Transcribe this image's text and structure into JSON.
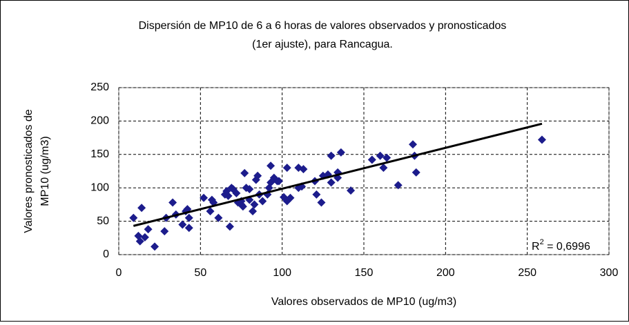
{
  "chart_data": {
    "type": "scatter",
    "title_lines": [
      "Dispersión de MP10 de 6 a 6 horas de valores observados  y pronosticados",
      "(1er ajuste), para Rancagua."
    ],
    "x_label": "Valores observados de MP10 (ug/m3)",
    "y_label_lines": [
      "Valores pronosticados de",
      "MP10 (ug/m3)"
    ],
    "color": "#1c1c8c",
    "xlim": [
      0,
      300
    ],
    "xticks": [
      0,
      50,
      100,
      150,
      200,
      250,
      300
    ],
    "ylim": [
      0,
      250
    ],
    "yticks": [
      0,
      50,
      100,
      150,
      200,
      250
    ],
    "grid": true,
    "x": [
      9,
      12,
      13,
      14,
      16,
      18,
      22,
      28,
      29,
      33,
      35,
      39,
      41,
      42,
      43,
      43,
      52,
      56,
      57,
      58,
      61,
      65,
      66,
      67,
      68,
      69,
      70,
      72,
      73,
      75,
      75,
      76,
      77,
      78,
      80,
      80,
      82,
      83,
      84,
      85,
      86,
      88,
      91,
      92,
      93,
      93,
      95,
      97,
      98,
      101,
      103,
      103,
      105,
      110,
      110,
      112,
      113,
      120,
      121,
      124,
      125,
      128,
      130,
      130,
      134,
      134,
      136,
      142,
      155,
      160,
      162,
      164,
      171,
      180,
      181,
      182,
      259
    ],
    "values": [
      55,
      28,
      20,
      70,
      26,
      38,
      12,
      35,
      55,
      78,
      60,
      45,
      65,
      68,
      55,
      40,
      85,
      65,
      82,
      78,
      55,
      90,
      95,
      88,
      42,
      100,
      98,
      92,
      78,
      75,
      80,
      72,
      122,
      100,
      82,
      98,
      65,
      75,
      112,
      118,
      90,
      80,
      90,
      100,
      108,
      133,
      115,
      110,
      110,
      86,
      130,
      80,
      85,
      100,
      130,
      102,
      128,
      110,
      90,
      78,
      118,
      120,
      108,
      148,
      123,
      115,
      153,
      96,
      142,
      148,
      130,
      145,
      104,
      165,
      148,
      123,
      172
    ],
    "trendline": {
      "x": [
        9,
        259
      ],
      "values": [
        43,
        196
      ],
      "color": "#000000"
    },
    "r_squared_label": {
      "prefix": "R",
      "superscript": "2",
      "rest": " = 0,6996"
    }
  }
}
